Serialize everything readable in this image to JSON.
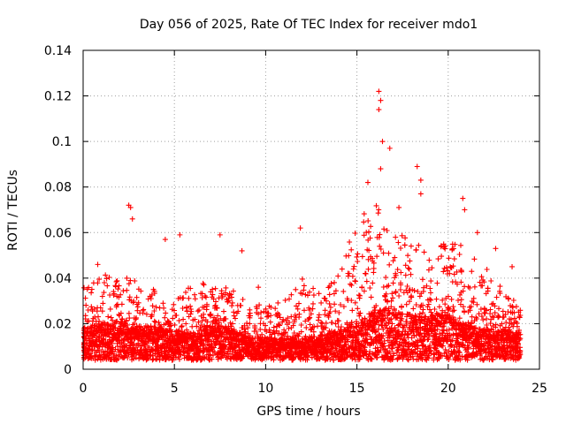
{
  "chart_data": {
    "type": "scatter",
    "title": "Day 056 of 2025, Rate Of TEC Index for receiver mdo1",
    "xlabel": "GPS time / hours",
    "ylabel": "ROTI / TECUs",
    "xlim": [
      0,
      25
    ],
    "ylim": [
      0,
      0.14
    ],
    "grid": true,
    "marker": "plus",
    "color": "#ff0000",
    "x_tick_labels": [
      "0",
      "5",
      "10",
      "15",
      "20",
      "25"
    ],
    "y_tick_labels": [
      "0",
      "0.02",
      "0.04",
      "0.06",
      "0.08",
      "0.1",
      "0.12",
      "0.14"
    ],
    "series": [
      {
        "name": "ROTI",
        "sample_interval_hours": 0.05,
        "x_start": 0.0,
        "x_end": 24.0,
        "baseline_by_hour": [
          0.014,
          0.016,
          0.016,
          0.015,
          0.015,
          0.013,
          0.012,
          0.015,
          0.014,
          0.011,
          0.01,
          0.01,
          0.01,
          0.011,
          0.013,
          0.016,
          0.022,
          0.022,
          0.02,
          0.02,
          0.02,
          0.016,
          0.014,
          0.013,
          0.012
        ],
        "upper_envelope_by_hour": [
          0.036,
          0.042,
          0.04,
          0.04,
          0.035,
          0.03,
          0.04,
          0.036,
          0.04,
          0.03,
          0.028,
          0.03,
          0.04,
          0.033,
          0.045,
          0.065,
          0.075,
          0.06,
          0.06,
          0.05,
          0.06,
          0.052,
          0.045,
          0.035,
          0.028
        ],
        "peaks": [
          {
            "x": 0.8,
            "y": 0.046
          },
          {
            "x": 2.5,
            "y": 0.072
          },
          {
            "x": 2.6,
            "y": 0.071
          },
          {
            "x": 2.7,
            "y": 0.066
          },
          {
            "x": 4.5,
            "y": 0.057
          },
          {
            "x": 5.3,
            "y": 0.059
          },
          {
            "x": 7.5,
            "y": 0.059
          },
          {
            "x": 8.7,
            "y": 0.052
          },
          {
            "x": 9.6,
            "y": 0.036
          },
          {
            "x": 11.9,
            "y": 0.062
          },
          {
            "x": 15.6,
            "y": 0.082
          },
          {
            "x": 16.2,
            "y": 0.122
          },
          {
            "x": 16.3,
            "y": 0.118
          },
          {
            "x": 16.2,
            "y": 0.114
          },
          {
            "x": 16.4,
            "y": 0.1
          },
          {
            "x": 16.3,
            "y": 0.088
          },
          {
            "x": 16.8,
            "y": 0.097
          },
          {
            "x": 17.3,
            "y": 0.071
          },
          {
            "x": 18.3,
            "y": 0.089
          },
          {
            "x": 18.5,
            "y": 0.083
          },
          {
            "x": 18.5,
            "y": 0.077
          },
          {
            "x": 20.8,
            "y": 0.075
          },
          {
            "x": 20.9,
            "y": 0.07
          },
          {
            "x": 21.6,
            "y": 0.06
          },
          {
            "x": 22.6,
            "y": 0.053
          },
          {
            "x": 23.5,
            "y": 0.045
          }
        ]
      }
    ]
  }
}
